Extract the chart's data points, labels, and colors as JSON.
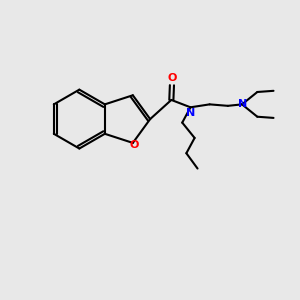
{
  "background_color": "#e8e8e8",
  "bond_color": "#000000",
  "oxygen_color": "#ff0000",
  "nitrogen_color": "#0000ff",
  "lw": 1.5,
  "xlim": [
    0,
    10
  ],
  "ylim": [
    0,
    10
  ],
  "figsize": [
    3.0,
    3.0
  ],
  "dpi": 100
}
